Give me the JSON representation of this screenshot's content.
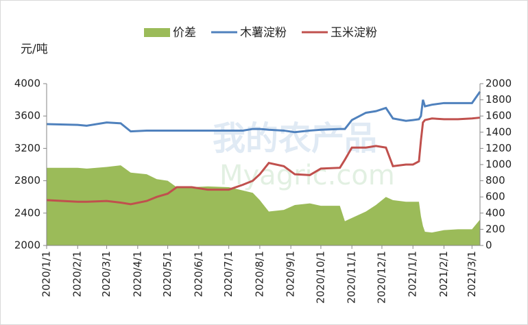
{
  "chart_data": {
    "type": "line",
    "unit_label": "元/吨",
    "watermark": "我的农产品",
    "watermark_sub": "Myagric.com",
    "x": [
      "2020/1/1",
      "2020/2/1",
      "2020/2/10",
      "2020/3/1",
      "2020/3/15",
      "2020/3/25",
      "2020/4/10",
      "2020/4/20",
      "2020/5/1",
      "2020/5/10",
      "2020/5/25",
      "2020/6/10",
      "2020/7/1",
      "2020/7/15",
      "2020/7/25",
      "2020/8/1",
      "2020/8/10",
      "2020/8/25",
      "2020/9/5",
      "2020/9/20",
      "2020/10/1",
      "2020/10/20",
      "2020/10/25",
      "2020/11/1",
      "2020/11/15",
      "2020/11/25",
      "2020/12/5",
      "2020/12/12",
      "2020/12/25",
      "2021/1/1",
      "2021/1/7",
      "2021/1/9",
      "2021/1/11",
      "2021/1/13",
      "2021/1/20",
      "2021/2/1",
      "2021/2/15",
      "2021/3/1",
      "2021/3/9"
    ],
    "xlim": [
      "2020/1/1",
      "2021/3/9"
    ],
    "xticks": [
      "2020/1/1",
      "2020/2/1",
      "2020/3/1",
      "2020/4/1",
      "2020/5/1",
      "2020/6/1",
      "2020/7/1",
      "2020/8/1",
      "2020/9/1",
      "2020/10/1",
      "2020/11/1",
      "2020/12/1",
      "2021/1/1",
      "2021/2/1",
      "2021/3/1"
    ],
    "ylim": [
      2000,
      4000
    ],
    "yticks": [
      2000,
      2400,
      2800,
      3200,
      3600,
      4000
    ],
    "y2lim": [
      0,
      2000
    ],
    "y2ticks": [
      0,
      200,
      400,
      600,
      800,
      1000,
      1200,
      1400,
      1600,
      1800,
      2000
    ],
    "series": [
      {
        "name": "价差",
        "color": "#9bbb59",
        "type": "area",
        "axis": "y2",
        "values": [
          960,
          960,
          950,
          970,
          990,
          900,
          880,
          820,
          800,
          720,
          720,
          730,
          720,
          680,
          650,
          560,
          420,
          440,
          500,
          520,
          490,
          490,
          300,
          340,
          420,
          500,
          600,
          560,
          540,
          540,
          540,
          360,
          240,
          170,
          160,
          190,
          200,
          200,
          320
        ]
      },
      {
        "name": "木薯淀粉",
        "color": "#4f81bd",
        "type": "line",
        "values": [
          3500,
          3490,
          3480,
          3520,
          3510,
          3410,
          3420,
          3420,
          3420,
          3420,
          3420,
          3420,
          3420,
          3420,
          3440,
          3440,
          3430,
          3420,
          3400,
          3420,
          3430,
          3440,
          3440,
          3550,
          3640,
          3660,
          3700,
          3570,
          3540,
          3550,
          3560,
          3600,
          3800,
          3720,
          3740,
          3760,
          3760,
          3760,
          3900
        ]
      },
      {
        "name": "玉米淀粉",
        "color": "#c0504d",
        "type": "line",
        "values": [
          2560,
          2540,
          2540,
          2550,
          2530,
          2510,
          2550,
          2600,
          2640,
          2720,
          2720,
          2690,
          2690,
          2750,
          2800,
          2880,
          3020,
          2980,
          2880,
          2870,
          2950,
          2960,
          3060,
          3210,
          3210,
          3230,
          3210,
          2980,
          3000,
          3000,
          3040,
          3300,
          3520,
          3550,
          3570,
          3560,
          3560,
          3570,
          3580
        ]
      }
    ]
  }
}
